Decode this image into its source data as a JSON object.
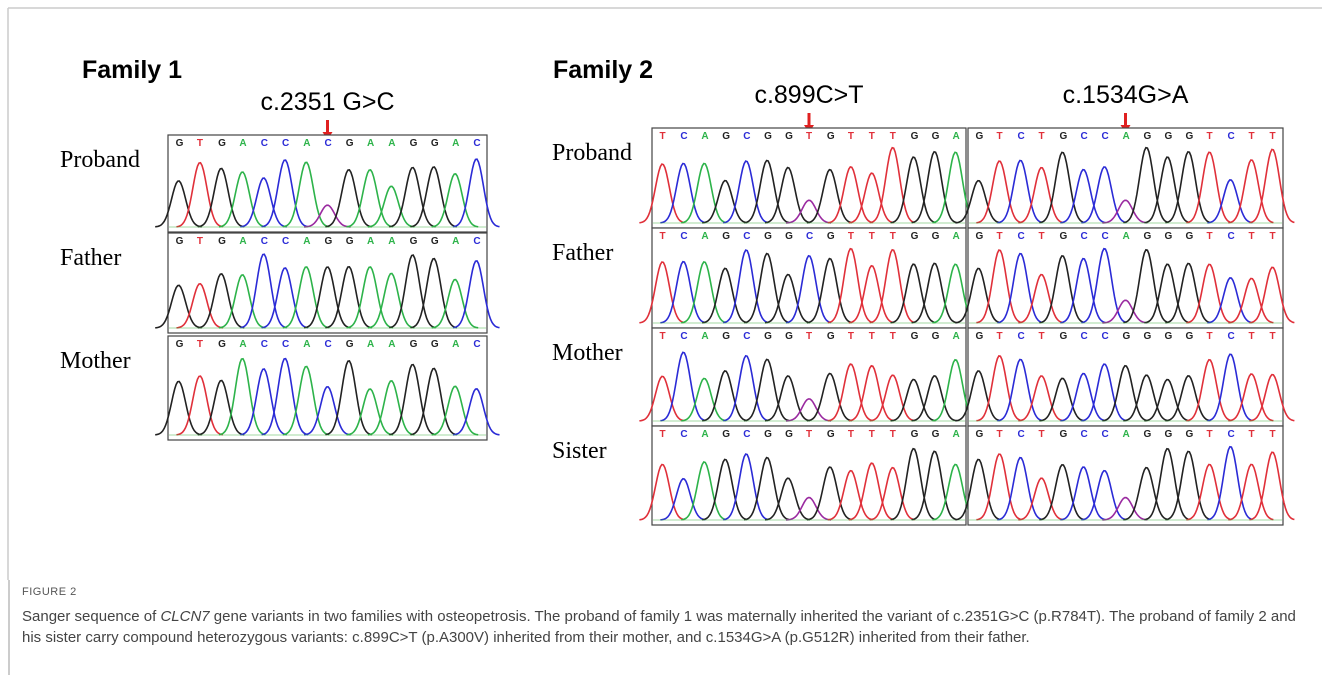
{
  "panels": [
    {
      "title": "Family 1",
      "rows": [
        "Proband",
        "Father",
        "Mother"
      ],
      "variants": [
        {
          "label": "c.2351 G>C",
          "sequences": [
            "GTGACCACGAAGGAC",
            "GTGACCAGGAAGGAC",
            "GTGACCACGAAGGAC"
          ]
        }
      ]
    },
    {
      "title": "Family 2",
      "rows": [
        "Proband",
        "Father",
        "Mother",
        "Sister"
      ],
      "variants": [
        {
          "label": "c.899C>T",
          "sequences": [
            "TCAGCGGTGTTTGGA",
            "TCAGCGGCGTTTGGA",
            "TCAGCGGTGTTTGGA",
            "TCAGCGGTGTTTGGA"
          ]
        },
        {
          "label": "c.1534G>A",
          "sequences": [
            "GTCTGCCAGGGTCTT",
            "GTCTGCCAGGGTCTT",
            "GTCTGCCGGGGTCTT",
            "GTCTGCCAGGGTCTT"
          ]
        }
      ]
    }
  ],
  "caption": {
    "label": "FIGURE 2",
    "text_start": "Sanger sequence of ",
    "gene": "CLCN7",
    "text_end": " gene variants in two families with osteopetrosis. The proband of family 1 was maternally inherited the variant of c.2351G>C (p.R784T). The proband of family 2 and his sister carry compound heterozygous variants: c.899C>T (p.A300V) inherited from their mother, and c.1534G>A (p.G512R) inherited from their father."
  }
}
